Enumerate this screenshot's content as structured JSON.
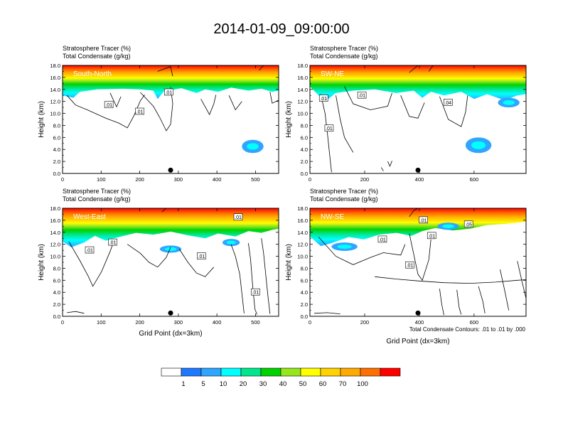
{
  "figure": {
    "title": "2014-01-09_09:00:00",
    "contour_note": "Total Condensate Contours: .01 to .01 by .000"
  },
  "colorbar": {
    "labels": [
      "1",
      "5",
      "10",
      "20",
      "30",
      "40",
      "50",
      "60",
      "70",
      "100"
    ],
    "colors": [
      "#ffffff",
      "#1e78ff",
      "#2ea5ff",
      "#00ffff",
      "#00e68c",
      "#00d200",
      "#96e61e",
      "#ffff00",
      "#ffd200",
      "#ffaa00",
      "#ff6e00",
      "#ff0000"
    ]
  },
  "chart_data": [
    {
      "type": "heatmap",
      "panel": "South-North",
      "title_lines": [
        "Stratosphere Tracer   (%)",
        "Total Condensate   (g/kg)"
      ],
      "ylabel": "Height (km)",
      "xlabel": "",
      "xlim": [
        0,
        560
      ],
      "ylim": [
        0,
        18
      ],
      "xticks": [
        0,
        100,
        200,
        300,
        400,
        500
      ],
      "yticks": [
        0,
        2,
        4,
        6,
        8,
        10,
        12,
        14,
        16,
        18
      ],
      "ytick_labels": [
        "0.0",
        "2.0",
        "4.0",
        "6.0",
        "8.0",
        "10.0",
        "12.0",
        "14.0",
        "16.0",
        "18.0"
      ],
      "marker_x": 280,
      "contour_labels": [
        {
          "x": 200,
          "y": 10.3,
          "text": ".01"
        },
        {
          "x": 120,
          "y": 11.4,
          "text": ".01"
        },
        {
          "x": 275,
          "y": 13.5,
          "text": ".01"
        }
      ]
    },
    {
      "type": "heatmap",
      "panel": "SW-NE",
      "title_lines": [
        "Stratosphere Tracer   (%)",
        "Total Condensate   (g/kg)"
      ],
      "ylabel": "Height (km)",
      "xlabel": "",
      "xlim": [
        0,
        790
      ],
      "ylim": [
        0,
        18
      ],
      "xticks": [
        0,
        200,
        400,
        600
      ],
      "yticks": [
        0,
        2,
        4,
        6,
        8,
        10,
        12,
        14,
        16,
        18
      ],
      "ytick_labels": [
        "0.0",
        "2.0",
        "4.0",
        "6.0",
        "8.0",
        "10.0",
        "12.0",
        "14.0",
        "16.0",
        "18.0"
      ],
      "marker_x": 395,
      "contour_labels": [
        {
          "x": 190,
          "y": 13.0,
          "text": ".01"
        },
        {
          "x": 50,
          "y": 12.5,
          "text": ".01"
        },
        {
          "x": 505,
          "y": 11.8,
          "text": ".04"
        },
        {
          "x": 70,
          "y": 7.5,
          "text": ".01"
        }
      ]
    },
    {
      "type": "heatmap",
      "panel": "West-East",
      "title_lines": [
        "Stratosphere Tracer   (%)",
        "Total Condensate   (g/kg)"
      ],
      "ylabel": "Height (km)",
      "xlabel": "Grid Point (dx=3km)",
      "xlim": [
        0,
        560
      ],
      "ylim": [
        0,
        18
      ],
      "xticks": [
        0,
        100,
        200,
        300,
        400,
        500
      ],
      "yticks": [
        0,
        2,
        4,
        6,
        8,
        10,
        12,
        14,
        16,
        18
      ],
      "ytick_labels": [
        "0.0",
        "2.0",
        "4.0",
        "6.0",
        "8.0",
        "10.0",
        "12.0",
        "14.0",
        "16.0",
        "18.0"
      ],
      "marker_x": 280,
      "contour_labels": [
        {
          "x": 70,
          "y": 11.0,
          "text": ".01"
        },
        {
          "x": 130,
          "y": 12.3,
          "text": ".01"
        },
        {
          "x": 360,
          "y": 10.0,
          "text": ".01"
        },
        {
          "x": 455,
          "y": 16.5,
          "text": ".01"
        },
        {
          "x": 500,
          "y": 4.0,
          "text": ".01"
        }
      ]
    },
    {
      "type": "heatmap",
      "panel": "NW-SE",
      "title_lines": [
        "Stratosphere Tracer   (%)",
        "Total Condensate   (g/kg)"
      ],
      "ylabel": "Height (km)",
      "xlabel": "Grid Point (dx=3km)",
      "xlim": [
        0,
        790
      ],
      "ylim": [
        0,
        18
      ],
      "xticks": [
        0,
        200,
        400,
        600
      ],
      "yticks": [
        0,
        2,
        4,
        6,
        8,
        10,
        12,
        14,
        16,
        18
      ],
      "ytick_labels": [
        "0.0",
        "2.0",
        "4.0",
        "6.0",
        "8.0",
        "10.0",
        "12.0",
        "14.0",
        "16.0",
        "18.0"
      ],
      "marker_x": 395,
      "contour_labels": [
        {
          "x": 415,
          "y": 16.0,
          "text": ".01"
        },
        {
          "x": 580,
          "y": 15.3,
          "text": ".05"
        },
        {
          "x": 265,
          "y": 12.8,
          "text": ".01"
        },
        {
          "x": 445,
          "y": 13.4,
          "text": ".01"
        },
        {
          "x": 365,
          "y": 8.5,
          "text": ".01"
        }
      ]
    }
  ]
}
